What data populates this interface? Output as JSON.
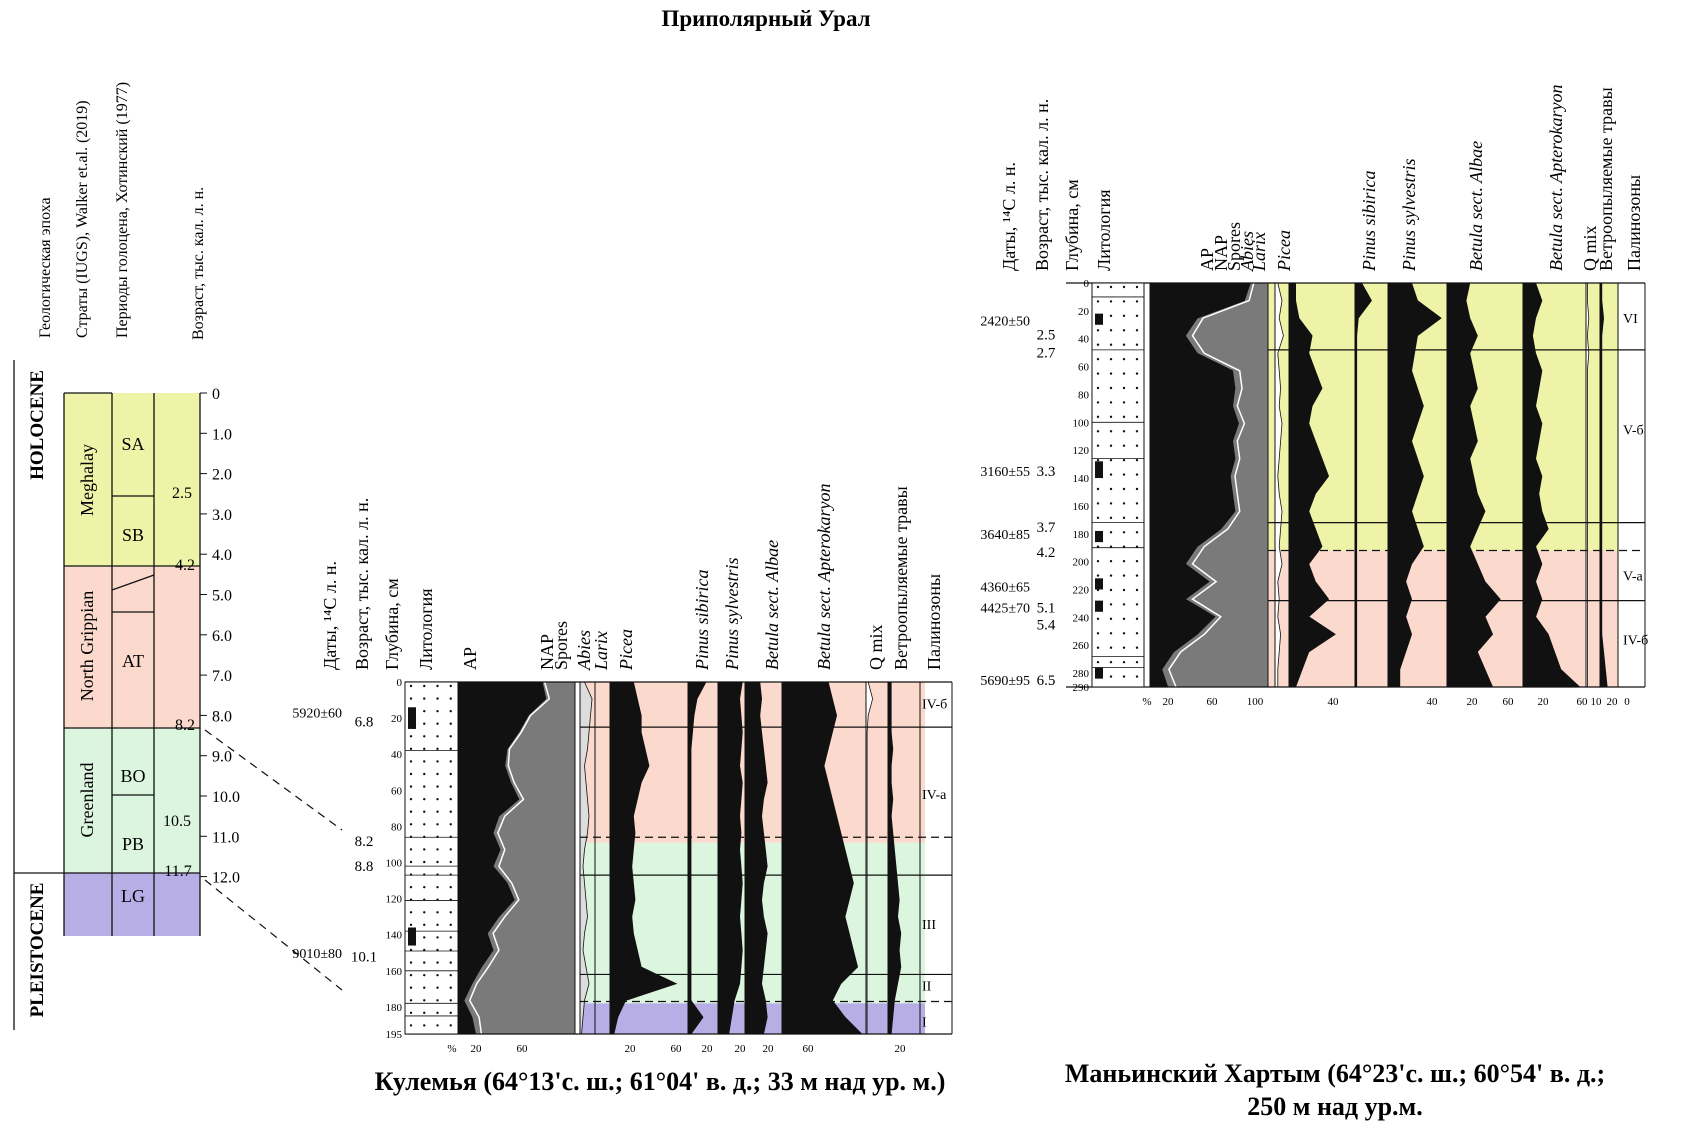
{
  "title": "Приполярный Урал",
  "colors": {
    "meghalay": "#eef3a8",
    "northgrippian": "#fbd9cc",
    "greenland": "#dcf5df",
    "pleistocene": "#b8aee6",
    "ap": "#7a7a7a",
    "black": "#111111"
  },
  "strat": {
    "headers": [
      "Геологическая эпоха",
      "Страты (IUGS), Walker et.al. (2019)",
      "Периоды голоцена, Хотинский (1977)",
      "Возраст, тыс. кал. л. н."
    ],
    "epochs": [
      "HOLOCENE",
      "PLEISTOCENE"
    ],
    "stages": [
      "Meghalay",
      "North Grippian",
      "Greenland"
    ],
    "periods": [
      "SA",
      "SB",
      "AT",
      "BO",
      "PB",
      "LG"
    ],
    "boundary_ages": [
      "2.5",
      "4.2",
      "8.2",
      "10.5",
      "11.7"
    ],
    "age_ticks": [
      [
        "0",
        0
      ],
      [
        "1.0",
        1
      ],
      [
        "2.0",
        2
      ],
      [
        "3.0",
        3
      ],
      [
        "4.0",
        4
      ],
      [
        "5.0",
        5
      ],
      [
        "6.0",
        6
      ],
      [
        "7.0",
        7
      ],
      [
        "8.0",
        8
      ],
      [
        "9.0",
        9
      ],
      [
        "10.0",
        10
      ],
      [
        "11.0",
        11
      ],
      [
        "12.0",
        12
      ]
    ]
  },
  "site1": {
    "caption": "Кулемья (64°13'с. ш.; 61°04' в. д.; 33 м над ур. м.)",
    "col_headers": [
      "Даты, ¹⁴С л. н.",
      "Возраст, тыс. кал. л. н.",
      "Глубина, см",
      "Литология"
    ],
    "taxa": [
      "AP",
      "NAP",
      "Spores",
      "Abies",
      "Larix",
      "Picea",
      "Pinus sibirica",
      "Pinus sylvestris",
      "Betula sect. Albae",
      "Betula sect. Apterokaryon",
      "Q mix",
      "Ветроопыляемые травы",
      "Палинозоны"
    ],
    "dates": [
      [
        "5920±60",
        17
      ],
      [
        "9010±80",
        150
      ]
    ],
    "ages": [
      [
        "6.8",
        22
      ],
      [
        "8.2",
        88
      ],
      [
        "8.8",
        102
      ],
      [
        "10.1",
        152
      ]
    ],
    "depths": [
      "0",
      "20",
      "40",
      "60",
      "80",
      "100",
      "120",
      "140",
      "160",
      "180",
      "195"
    ],
    "zones": [
      "IV-б",
      "IV-а",
      "III",
      "II",
      "I"
    ],
    "axis_labels": [
      "%",
      "20",
      "60",
      "20",
      "60",
      "20",
      "20",
      "20",
      "60",
      "20"
    ]
  },
  "site2": {
    "caption_line1": "Маньинский Хартым (64°23'с. ш.; 60°54' в. д.;",
    "caption_line2": "250 м над ур.м.",
    "col_headers": [
      "Даты, ¹⁴С л. н.",
      "Возраст, тыс. кал. л. н.",
      "Глубина, см",
      "Литология"
    ],
    "taxa": [
      "AP",
      "NAP",
      "Spores",
      "Abies",
      "Larix",
      "Picea",
      "Pinus sibirica",
      "Pinus sylvestris",
      "Betula sect. Albae",
      "Betula sect. Apterokaryon",
      "Q mix",
      "Ветроопыляемые травы",
      "Палинозоны"
    ],
    "dates": [
      [
        "2420±50",
        27
      ],
      [
        "3160±55",
        135
      ],
      [
        "3640±85",
        180
      ],
      [
        "4360±65",
        218
      ],
      [
        "4425±70",
        233
      ],
      [
        "5690±95",
        285
      ]
    ],
    "ages": [
      [
        "2.5",
        37
      ],
      [
        "2.7",
        50
      ],
      [
        "3.3",
        135
      ],
      [
        "3.7",
        175
      ],
      [
        "4.2",
        193
      ],
      [
        "5.1",
        233
      ],
      [
        "5.4",
        245
      ],
      [
        "6.5",
        285
      ]
    ],
    "depths": [
      "0",
      "20",
      "40",
      "60",
      "80",
      "100",
      "120",
      "140",
      "160",
      "180",
      "200",
      "220",
      "240",
      "260",
      "280",
      "290"
    ],
    "zones": [
      "VI",
      "V-б",
      "V-а",
      "IV-б"
    ],
    "axis_labels": [
      "%",
      "20",
      "60",
      "100",
      "40",
      "40",
      "20",
      "60",
      "20",
      "60",
      "10",
      "20",
      "0"
    ]
  }
}
